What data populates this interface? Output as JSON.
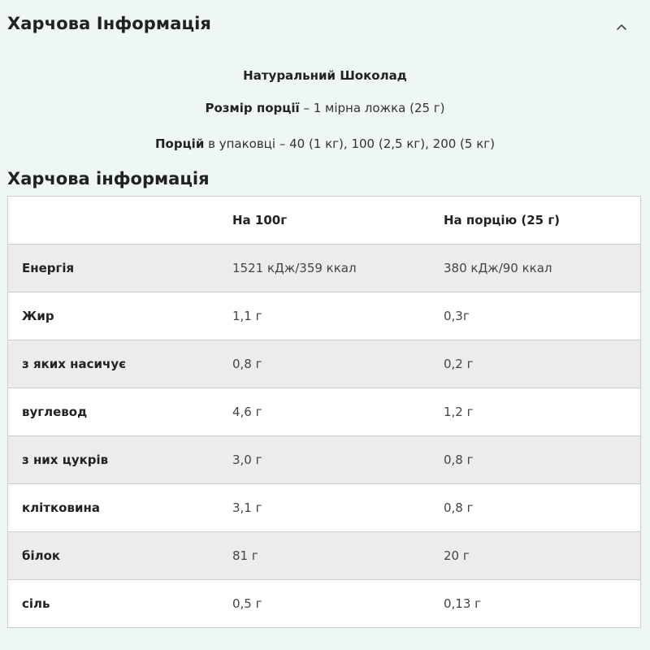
{
  "accordion": {
    "title": "Харчова Інформація",
    "toggle_icon": "chevron-up-icon"
  },
  "product": {
    "flavor": "Натуральний Шоколад",
    "serving_label": "Розмір порції",
    "serving_value": "– 1 мірна ложка (25 г)",
    "servings_label": "Порцій",
    "servings_value": "в упаковці – 40 (1 кг), 100 (2,5 кг), 200 (5 кг)"
  },
  "table": {
    "heading": "Харчова інформація",
    "columns": [
      "",
      "На 100г",
      "На порцію (25 г)"
    ],
    "rows": [
      {
        "name": "Енергія",
        "per100": "1521 кДж/359 ккал",
        "perServing": "380 кДж/90 ккал"
      },
      {
        "name": "Жир",
        "per100": "1,1 г",
        "perServing": "0,3г"
      },
      {
        "name": "з яких насичує",
        "per100": "0,8 г",
        "perServing": "0,2 г"
      },
      {
        "name": "вуглевод",
        "per100": "4,6 г",
        "perServing": "1,2 г"
      },
      {
        "name": "з них цукрів",
        "per100": "3,0 г",
        "perServing": "0,8 г"
      },
      {
        "name": "клітковина",
        "per100": "3,1 г",
        "perServing": "0,8 г"
      },
      {
        "name": "білок",
        "per100": "81 г",
        "perServing": "20 г"
      },
      {
        "name": "сіль",
        "per100": "0,5 г",
        "perServing": "0,13 г"
      }
    ]
  }
}
